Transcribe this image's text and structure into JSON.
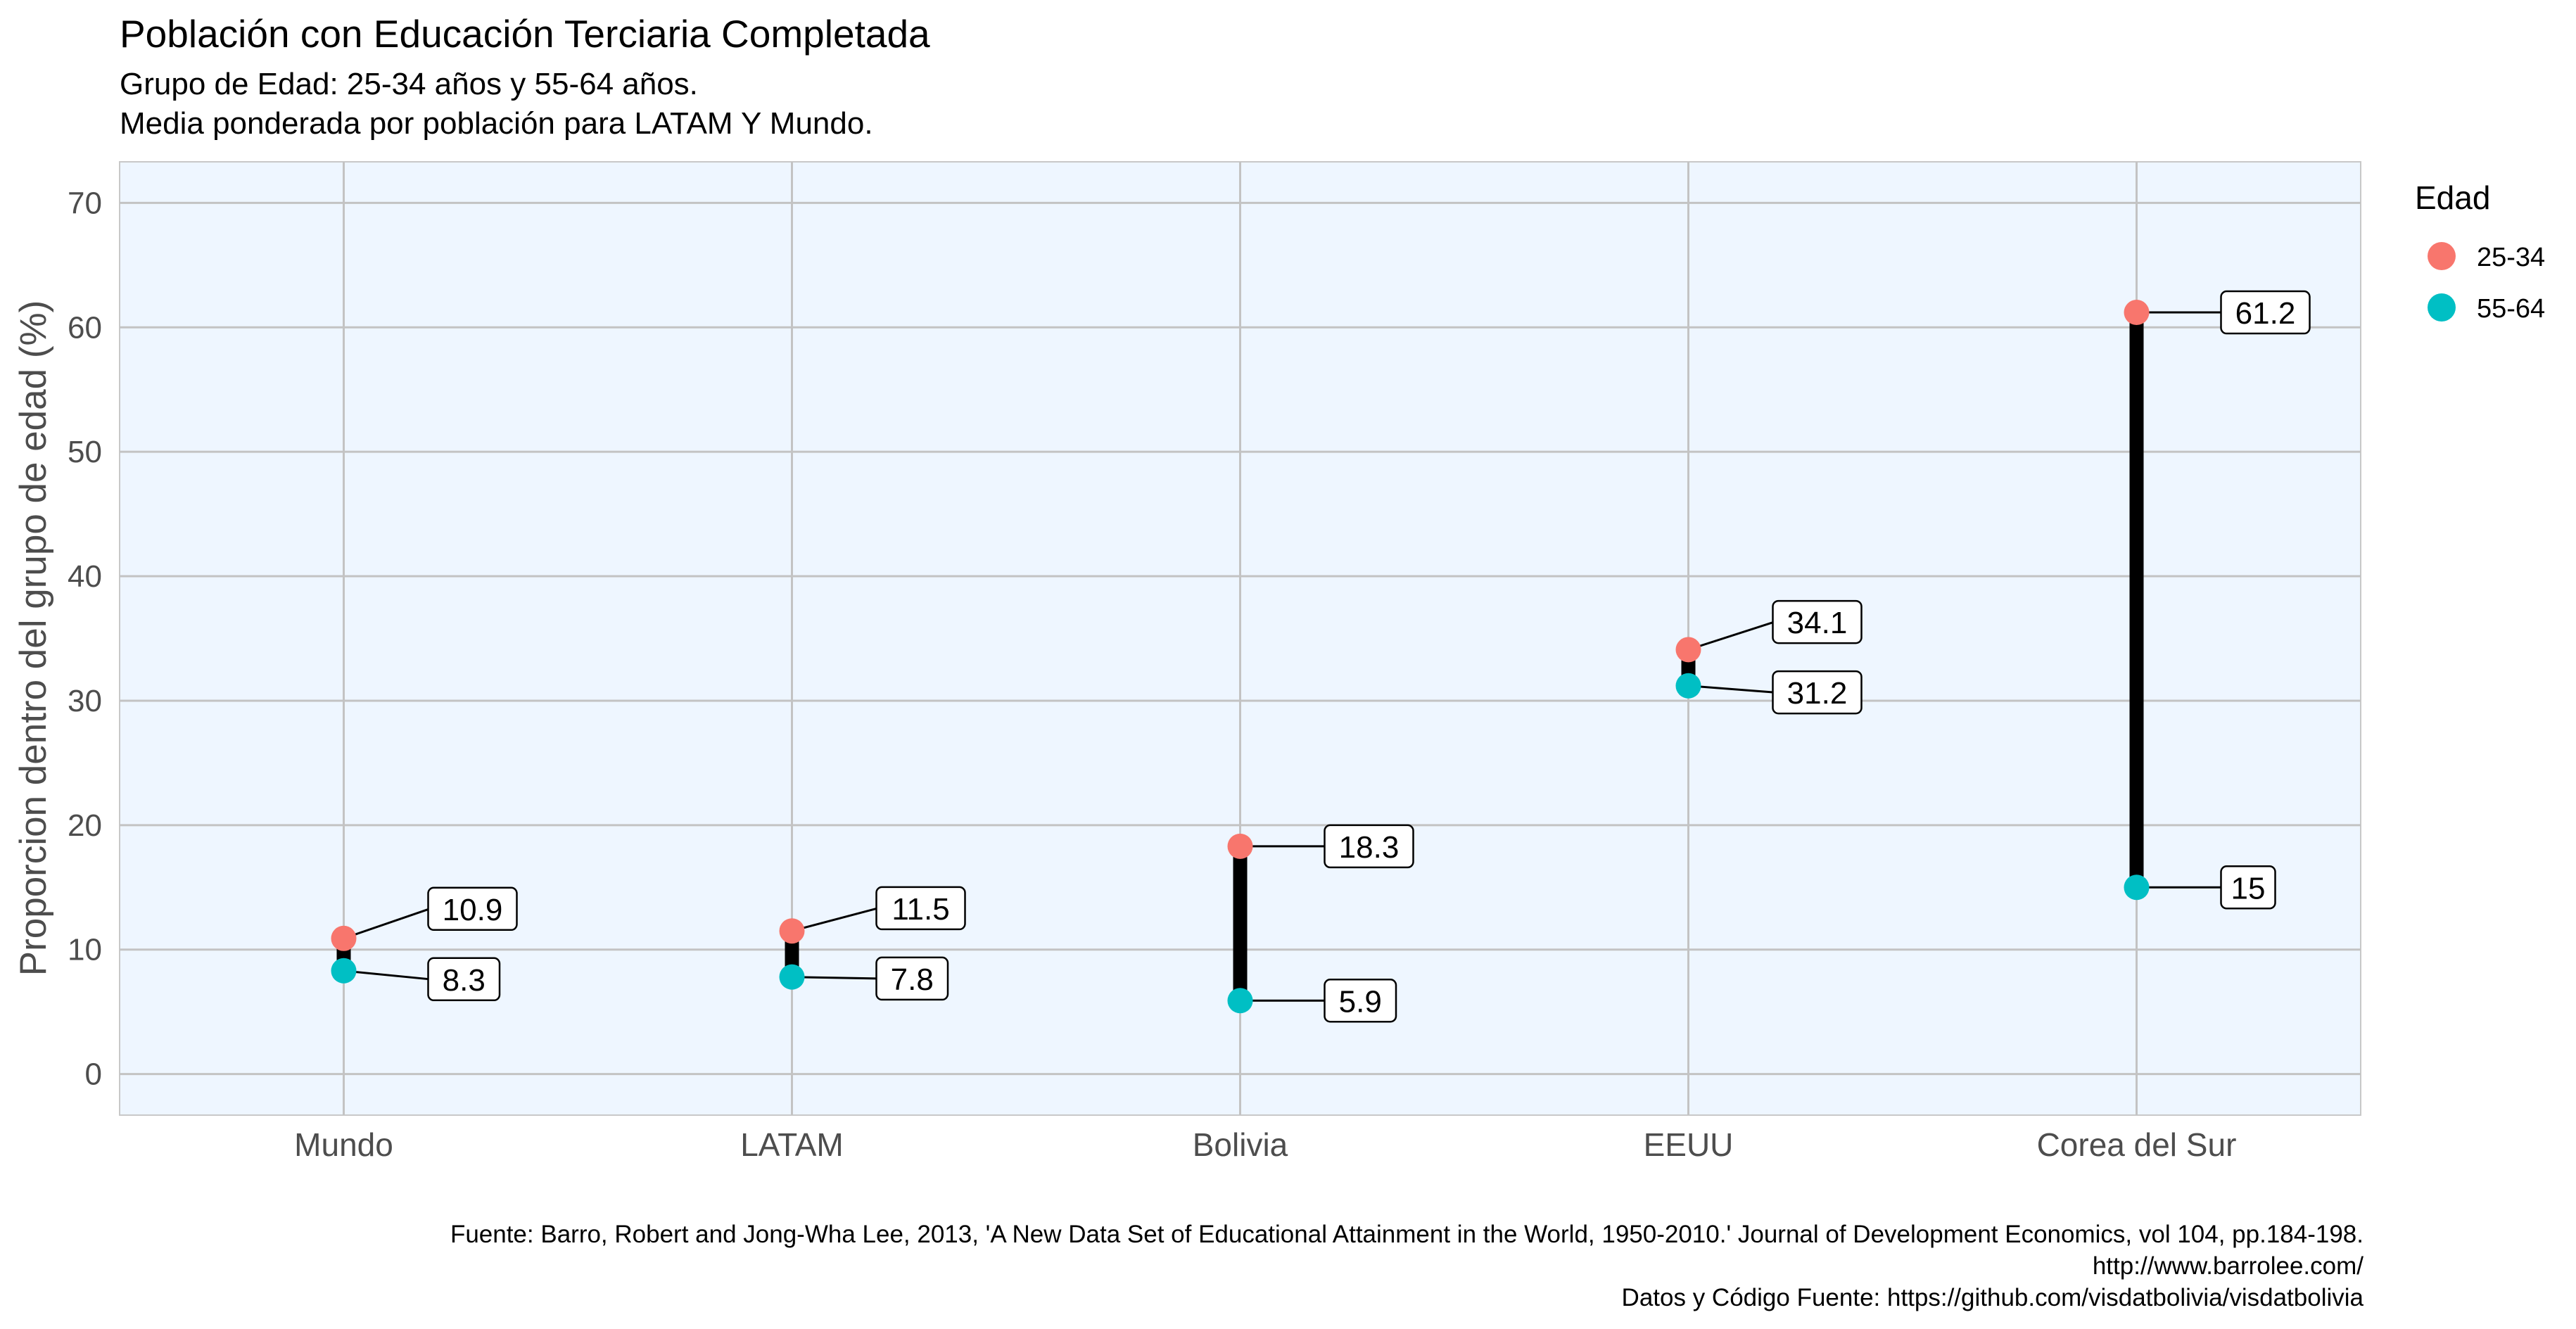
{
  "chart_data": {
    "type": "dumbbell",
    "title": "Población con Educación Terciaria Completada",
    "subtitle": [
      "Grupo de Edad: 25-34 años y 55-64 años.",
      "Media ponderada por población para LATAM Y Mundo."
    ],
    "xlabel": "",
    "ylabel": "Proporcion dentro del grupo de edad (%)",
    "categories": [
      "Mundo",
      "LATAM",
      "Bolivia",
      "EEUU",
      "Corea del Sur"
    ],
    "series": [
      {
        "name": "25-34",
        "color": "#F8766D",
        "values": [
          10.9,
          11.5,
          18.3,
          34.1,
          61.2
        ],
        "labels": [
          "10.9",
          "11.5",
          "18.3",
          "34.1",
          "61.2"
        ]
      },
      {
        "name": "55-64",
        "color": "#00BFC4",
        "values": [
          8.3,
          7.8,
          5.9,
          31.2,
          15
        ],
        "labels": [
          "8.3",
          "7.8",
          "5.9",
          "31.2",
          "15"
        ]
      }
    ],
    "ylim": [
      -3.3,
      73.3
    ],
    "yticks": [
      "0",
      "10",
      "20",
      "30",
      "40",
      "50",
      "60",
      "70"
    ],
    "grid": true,
    "panel_background": "#EEF6FF",
    "segment_color": "#000000",
    "legend": {
      "title": "Edad",
      "position": "right"
    },
    "caption": [
      "Fuente: Barro, Robert and Jong-Wha Lee, 2013, 'A New Data Set of Educational Attainment in the World, 1950-2010.' Journal of Development Economics, vol 104, pp.184-198.",
      "http://www.barrolee.com/",
      "Datos y Código Fuente: https://github.com/visdatbolivia/visdatbolivia"
    ]
  }
}
